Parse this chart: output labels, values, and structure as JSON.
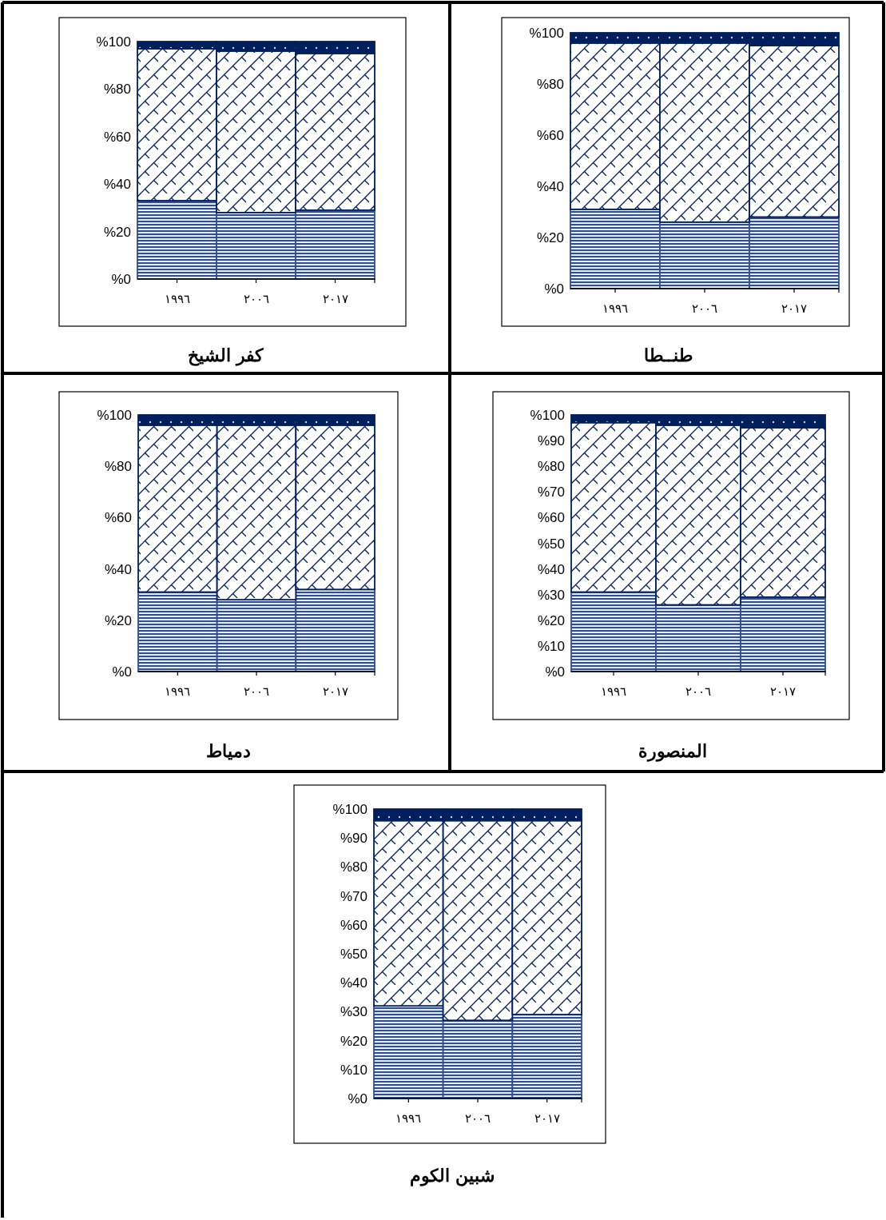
{
  "chart_data": [
    {
      "type": "bar",
      "stacked": true,
      "title": "كفر الشيخ",
      "categories": [
        "١٩٩٦",
        "٢٠٠٦",
        "٢٠١٧"
      ],
      "ylim": [
        0,
        100
      ],
      "yticks": [
        {
          "value": 0,
          "label": "%0"
        },
        {
          "value": 20,
          "label": "%20"
        },
        {
          "value": 40,
          "label": "%40"
        },
        {
          "value": 60,
          "label": "%60"
        },
        {
          "value": 80,
          "label": "%80"
        },
        {
          "value": 100,
          "label": "%100"
        }
      ],
      "series": [
        {
          "color": "#2f4f8f",
          "values": [
            33,
            28,
            29
          ]
        },
        {
          "color": "#002060",
          "values": [
            64,
            68,
            66
          ]
        },
        {
          "color": "#001f5c",
          "values": [
            3,
            4,
            5
          ]
        }
      ]
    },
    {
      "type": "bar",
      "stacked": true,
      "title": "طنــطا",
      "categories": [
        "١٩٩٦",
        "٢٠٠٦",
        "٢٠١٧"
      ],
      "ylim": [
        0,
        100
      ],
      "yticks": [
        {
          "value": 0,
          "label": "%0"
        },
        {
          "value": 20,
          "label": "%20"
        },
        {
          "value": 40,
          "label": "%40"
        },
        {
          "value": 60,
          "label": "%60"
        },
        {
          "value": 80,
          "label": "%80"
        },
        {
          "value": 100,
          "label": "%100"
        }
      ],
      "series": [
        {
          "color": "#2f4f8f",
          "values": [
            31,
            26,
            28
          ]
        },
        {
          "color": "#002060",
          "values": [
            65,
            70,
            67
          ]
        },
        {
          "color": "#001f5c",
          "values": [
            4,
            4,
            5
          ]
        }
      ]
    },
    {
      "type": "bar",
      "stacked": true,
      "title": "دمياط",
      "categories": [
        "١٩٩٦",
        "٢٠٠٦",
        "٢٠١٧"
      ],
      "ylim": [
        0,
        100
      ],
      "yticks": [
        {
          "value": 0,
          "label": "%0"
        },
        {
          "value": 20,
          "label": "%20"
        },
        {
          "value": 40,
          "label": "%40"
        },
        {
          "value": 60,
          "label": "%60"
        },
        {
          "value": 80,
          "label": "%80"
        },
        {
          "value": 100,
          "label": "%100"
        }
      ],
      "series": [
        {
          "color": "#2f4f8f",
          "values": [
            31,
            28,
            32
          ]
        },
        {
          "color": "#002060",
          "values": [
            65,
            68,
            64
          ]
        },
        {
          "color": "#001f5c",
          "values": [
            4,
            4,
            4
          ]
        }
      ]
    },
    {
      "type": "bar",
      "stacked": true,
      "title": "المنصورة",
      "categories": [
        "١٩٩٦",
        "٢٠٠٦",
        "٢٠١٧"
      ],
      "ylim": [
        0,
        100
      ],
      "yticks": [
        {
          "value": 0,
          "label": "%0"
        },
        {
          "value": 10,
          "label": "%10"
        },
        {
          "value": 20,
          "label": "%20"
        },
        {
          "value": 30,
          "label": "%30"
        },
        {
          "value": 40,
          "label": "%40"
        },
        {
          "value": 50,
          "label": "%50"
        },
        {
          "value": 60,
          "label": "%60"
        },
        {
          "value": 70,
          "label": "%70"
        },
        {
          "value": 80,
          "label": "%80"
        },
        {
          "value": 90,
          "label": "%90"
        },
        {
          "value": 100,
          "label": "%100"
        }
      ],
      "series": [
        {
          "color": "#2f4f8f",
          "values": [
            31,
            26,
            29
          ]
        },
        {
          "color": "#002060",
          "values": [
            66,
            70,
            66
          ]
        },
        {
          "color": "#001f5c",
          "values": [
            3,
            4,
            5
          ]
        }
      ]
    },
    {
      "type": "bar",
      "stacked": true,
      "title": "شبين الكوم",
      "categories": [
        "١٩٩٦",
        "٢٠٠٦",
        "٢٠١٧"
      ],
      "ylim": [
        0,
        100
      ],
      "yticks": [
        {
          "value": 0,
          "label": "%0"
        },
        {
          "value": 10,
          "label": "%10"
        },
        {
          "value": 20,
          "label": "%20"
        },
        {
          "value": 30,
          "label": "%30"
        },
        {
          "value": 40,
          "label": "%40"
        },
        {
          "value": 50,
          "label": "%50"
        },
        {
          "value": 60,
          "label": "%60"
        },
        {
          "value": 70,
          "label": "%70"
        },
        {
          "value": 80,
          "label": "%80"
        },
        {
          "value": 90,
          "label": "%90"
        },
        {
          "value": 100,
          "label": "%100"
        }
      ],
      "series": [
        {
          "color": "#2f4f8f",
          "values": [
            32,
            27,
            29
          ]
        },
        {
          "color": "#002060",
          "values": [
            64,
            69,
            67
          ]
        },
        {
          "color": "#001f5c",
          "values": [
            4,
            4,
            4
          ]
        }
      ]
    }
  ]
}
